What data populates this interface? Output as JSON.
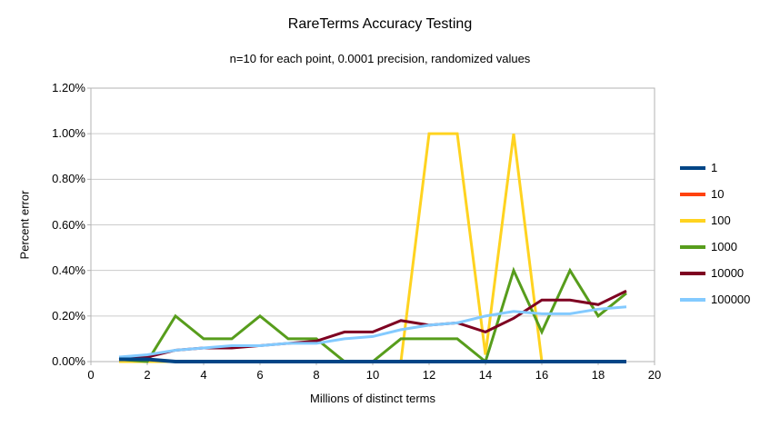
{
  "chart_data": {
    "type": "line",
    "title": "RareTerms Accuracy Testing",
    "subtitle": "n=10 for each point, 0.0001 precision, randomized values",
    "xlabel": "Millions of distinct terms",
    "ylabel": "Percent error",
    "xlim": [
      0,
      20
    ],
    "ylim": [
      0,
      1.2
    ],
    "grid": "horizontal",
    "legend_position": "right",
    "axis_color": "#b3b3b3",
    "grid_color": "#cccccc",
    "x_ticks": [
      {
        "value": 0,
        "label": "0"
      },
      {
        "value": 2,
        "label": "2"
      },
      {
        "value": 4,
        "label": "4"
      },
      {
        "value": 6,
        "label": "6"
      },
      {
        "value": 8,
        "label": "8"
      },
      {
        "value": 10,
        "label": "10"
      },
      {
        "value": 12,
        "label": "12"
      },
      {
        "value": 14,
        "label": "14"
      },
      {
        "value": 16,
        "label": "16"
      },
      {
        "value": 18,
        "label": "18"
      },
      {
        "value": 20,
        "label": "20"
      }
    ],
    "y_ticks": [
      {
        "value": 0.0,
        "label": "0.00%"
      },
      {
        "value": 0.2,
        "label": "0.20%"
      },
      {
        "value": 0.4,
        "label": "0.40%"
      },
      {
        "value": 0.6,
        "label": "0.60%"
      },
      {
        "value": 0.8,
        "label": "0.80%"
      },
      {
        "value": 1.0,
        "label": "1.00%"
      },
      {
        "value": 1.2,
        "label": "1.20%"
      }
    ],
    "x": [
      1,
      2,
      3,
      4,
      5,
      6,
      7,
      8,
      9,
      10,
      11,
      12,
      13,
      14,
      15,
      16,
      17,
      18,
      19
    ],
    "series": [
      {
        "name": "1",
        "color": "#004586",
        "line_width": 4,
        "values": [
          0.01,
          0.01,
          0,
          0,
          0,
          0,
          0,
          0,
          0,
          0,
          0,
          0,
          0,
          0,
          0,
          0,
          0,
          0,
          0
        ]
      },
      {
        "name": "10",
        "color": "#FF420E",
        "line_width": 3,
        "values": [
          0,
          0,
          0,
          0,
          0,
          0,
          0,
          0,
          0,
          0,
          0,
          0,
          0,
          0,
          0,
          0,
          0,
          0,
          0
        ]
      },
      {
        "name": "100",
        "color": "#FFD320",
        "line_width": 3,
        "values": [
          0,
          0,
          0,
          0,
          0,
          0,
          0,
          0,
          0,
          0,
          0,
          1.0,
          1.0,
          0.03,
          1.0,
          0,
          0,
          0,
          0
        ]
      },
      {
        "name": "1000",
        "color": "#579D1C",
        "line_width": 3,
        "values": [
          0.01,
          0,
          0.2,
          0.1,
          0.1,
          0.2,
          0.1,
          0.1,
          0,
          0,
          0.1,
          0.1,
          0.1,
          0,
          0.4,
          0.13,
          0.4,
          0.2,
          0.3
        ]
      },
      {
        "name": "10000",
        "color": "#7E0021",
        "line_width": 3,
        "values": [
          0.01,
          0.02,
          0.05,
          0.06,
          0.06,
          0.07,
          0.08,
          0.09,
          0.13,
          0.13,
          0.18,
          0.16,
          0.17,
          0.13,
          0.19,
          0.27,
          0.27,
          0.25,
          0.31
        ]
      },
      {
        "name": "100000",
        "color": "#83CAFF",
        "line_width": 3,
        "values": [
          0.02,
          0.03,
          0.05,
          0.06,
          0.07,
          0.07,
          0.08,
          0.08,
          0.1,
          0.11,
          0.14,
          0.16,
          0.17,
          0.2,
          0.22,
          0.21,
          0.21,
          0.23,
          0.24
        ]
      }
    ],
    "draw_order": [
      "10",
      "100",
      "1000",
      "10000",
      "100000",
      "1"
    ]
  }
}
